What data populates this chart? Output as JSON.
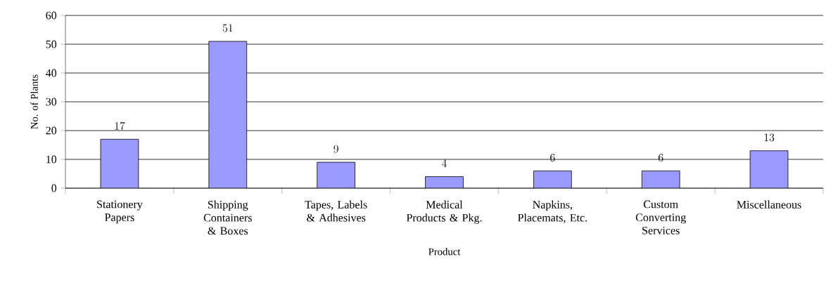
{
  "chart_data": {
    "type": "bar",
    "xlabel": "Product",
    "ylabel": "No. of Plants",
    "categories": [
      "Stationery Papers",
      "Shipping Containers & Boxes",
      "Tapes, Labels & Adhesives",
      "Medical Products & Pkg.",
      "Napkins, Placemats, Etc.",
      "Custom Converting Services",
      "Miscellaneous"
    ],
    "values": [
      17,
      51,
      9,
      4,
      6,
      6,
      13
    ],
    "color": "#9999ff",
    "ylim": [
      0,
      60
    ],
    "yticks": [
      0,
      10,
      20,
      30,
      40,
      50,
      60
    ],
    "grid": "y",
    "data_labels": true
  }
}
